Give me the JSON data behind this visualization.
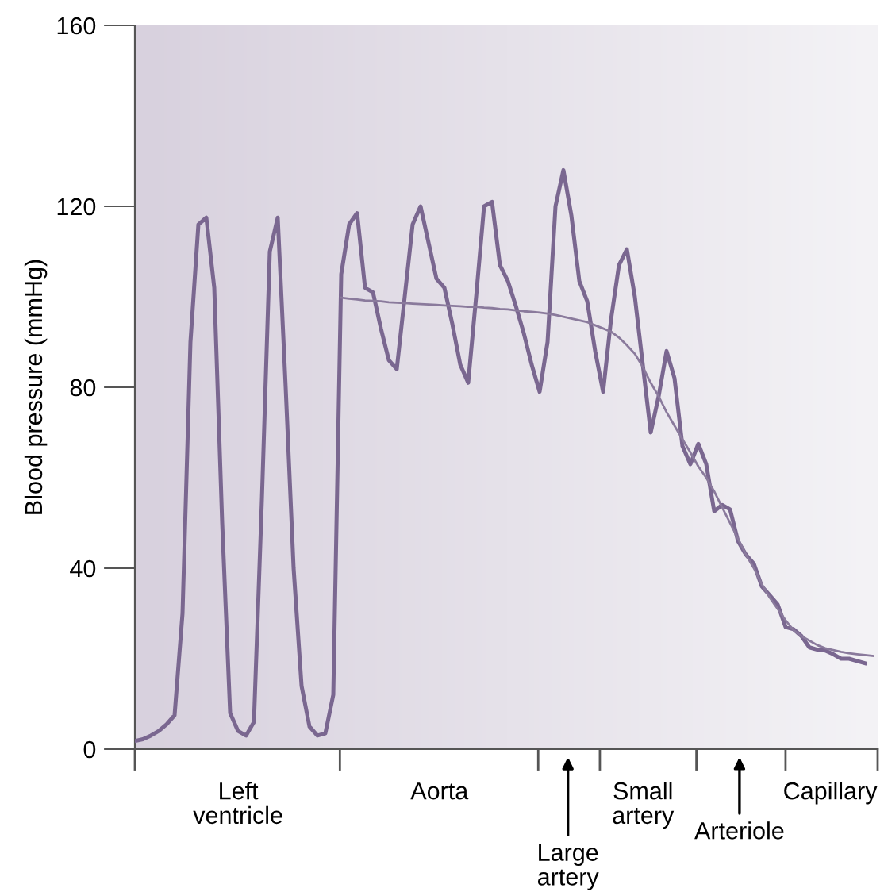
{
  "chart_data": {
    "type": "line",
    "ylabel": "Blood pressure (mmHg)",
    "ylim": [
      0,
      160
    ],
    "yticks": [
      0,
      40,
      80,
      120,
      160
    ],
    "grid": false,
    "marker": "none",
    "line_style": "solid",
    "categories": [
      null,
      null,
      null,
      null,
      null,
      null,
      null,
      null,
      null,
      null,
      null,
      null,
      null,
      null,
      null,
      null,
      null,
      null,
      null,
      null,
      null,
      null,
      null,
      null,
      null,
      null,
      null,
      null,
      null,
      null,
      null,
      null,
      null,
      null,
      null,
      null,
      null,
      null,
      null,
      null,
      null,
      null,
      null,
      null,
      null,
      null,
      null,
      null,
      null,
      null,
      null,
      null,
      null,
      null,
      null,
      null,
      null,
      null,
      null,
      null,
      null,
      null,
      null,
      null,
      null,
      null,
      null,
      null,
      null,
      null,
      null,
      null,
      null,
      null,
      null,
      null,
      null,
      null,
      null,
      null,
      null,
      null,
      null,
      null,
      null,
      null,
      null,
      null,
      null,
      null,
      null,
      null,
      null,
      null
    ],
    "series": [
      {
        "color": "#7a6790",
        "values": [
          1.8,
          2.2,
          3,
          4,
          5.5,
          7.5,
          30,
          90,
          116,
          117.5,
          102,
          50,
          8,
          4,
          3,
          6,
          55,
          110,
          117.5,
          80,
          40,
          14,
          5,
          3,
          3.5,
          12,
          105,
          116,
          118.5,
          102,
          101,
          93,
          86,
          84,
          100,
          116,
          120,
          112,
          104,
          102,
          94,
          85,
          81,
          100,
          120,
          121,
          107,
          103.5,
          98,
          92,
          85,
          79,
          90,
          120,
          128,
          118,
          103.5,
          99,
          88,
          79,
          95,
          107,
          110.5,
          100,
          85,
          70,
          78,
          88,
          82,
          67,
          63,
          67.5,
          63,
          52.6,
          54,
          53,
          46,
          43,
          41,
          36,
          34,
          32,
          27,
          26.5,
          25,
          22.5,
          22,
          21.8,
          21,
          20,
          20,
          19.5,
          19,
          null
        ]
      },
      {
        "color": "#8a7a9c",
        "values": [
          null,
          null,
          null,
          null,
          null,
          null,
          null,
          null,
          null,
          null,
          null,
          null,
          null,
          null,
          null,
          null,
          null,
          null,
          null,
          null,
          null,
          null,
          null,
          null,
          null,
          null,
          99.8,
          99.6,
          99.4,
          99.2,
          99.1,
          99,
          98.8,
          98.7,
          98.6,
          98.5,
          98.4,
          98.3,
          98.2,
          98.1,
          98,
          97.9,
          97.8,
          97.8,
          97.6,
          97.5,
          97.3,
          97.2,
          97,
          96.8,
          96.7,
          96.5,
          96.3,
          96,
          95.6,
          95.2,
          94.8,
          94.4,
          93.7,
          93,
          92.3,
          91,
          89.3,
          87.4,
          84.5,
          81,
          78,
          74.5,
          71.5,
          68.5,
          65.6,
          62.5,
          60,
          57,
          53.5,
          50,
          46.5,
          43,
          40,
          36.5,
          33.5,
          31,
          28.5,
          26.3,
          25,
          24,
          23,
          22.3,
          21.9,
          21.5,
          21.2,
          21,
          20.8,
          20.6
        ]
      }
    ],
    "annotations": [
      "Left\nventricle",
      "Aorta",
      "Large\nartery",
      "Small\nartery",
      "Arteriole",
      "Capillary"
    ]
  }
}
